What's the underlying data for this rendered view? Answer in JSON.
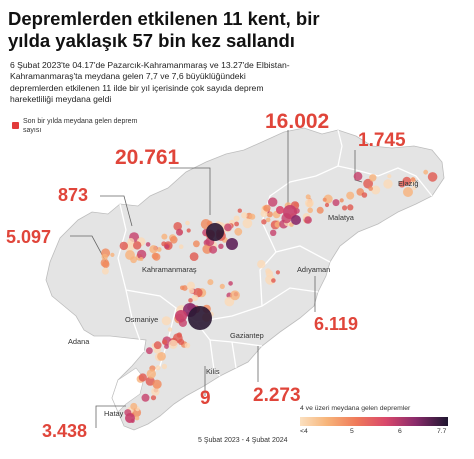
{
  "title": "Depremlerden etkilenen 11 kent, bir yılda yaklaşık 57 bin kez sallandı",
  "subtitle": "6 Şubat 2023'te 04.17'de Pazarcık-Kahramanmaraş ve 13.27'de Elbistan-Kahramanmaraş'ta meydana gelen 7,7 ve 7,6 büyüklüğündeki depremlerden etkilenen 11 ilde bir yıl içerisinde çok sayıda deprem hareketliliği meydana geldi",
  "legend": {
    "count_label": "Son bir yılda meydana gelen deprem sayısı",
    "count_color": "#e23b3b",
    "magnitude_title": "4 ve üzeri meydana gelen depremler",
    "magnitude_ticks": [
      "<4",
      "5",
      "6",
      "7.7"
    ],
    "date_range": "5 Şubat 2023 - 4 Şubat 2024"
  },
  "colors": {
    "accent": "#e0453a",
    "land": "#e6e6e6",
    "border": "#ffffff",
    "sea": "#ffffff"
  },
  "counts": [
    {
      "value": "16.002",
      "place": "Malatya"
    },
    {
      "value": "1.745",
      "place": "Elazığ"
    },
    {
      "value": "20.761",
      "place": "Kahramanmaraş"
    },
    {
      "value": "873",
      "place": "Osmaniye"
    },
    {
      "value": "5.097",
      "place": "Adana"
    },
    {
      "value": "6.119",
      "place": "Adıyaman"
    },
    {
      "value": "9",
      "place": "Kilis"
    },
    {
      "value": "2.273",
      "place": "Gaziantep"
    },
    {
      "value": "3.438",
      "place": "Hatay"
    }
  ],
  "city_labels": [
    "Elazığ",
    "Malatya",
    "Kahramanmaraş",
    "Adıyaman",
    "Osmaniye",
    "Adana",
    "Gaziantep",
    "Kilis",
    "Hatay"
  ]
}
